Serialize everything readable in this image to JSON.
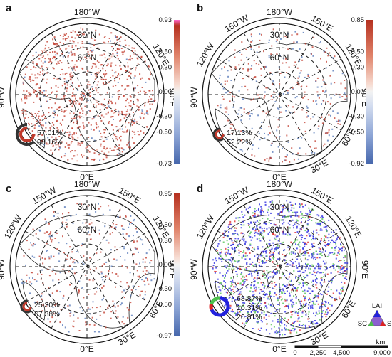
{
  "panels": [
    {
      "label": "a",
      "longitudes": [
        "180°W",
        "120°E",
        "90°E",
        "0°E",
        "90°W"
      ],
      "latitudes": [
        "30°N",
        "60°N"
      ],
      "colorbar": {
        "ticks": [
          "0.93",
          "0.50",
          "0.30",
          "0.00",
          "-0.30",
          "-0.50",
          "-0.73"
        ]
      },
      "percentages": [
        "57.01%",
        "98.16%"
      ]
    },
    {
      "label": "b",
      "longitudes": [
        "180°W",
        "150°E",
        "120°E",
        "90°E",
        "60°E",
        "30°E",
        "0°E",
        "90°W",
        "120°W",
        "150°W"
      ],
      "latitudes": [
        "30°N",
        "60°N"
      ],
      "colorbar": {
        "ticks": [
          "0.85",
          "0.50",
          "0.30",
          "0.00",
          "-0.30",
          "-0.50",
          "-0.92"
        ]
      },
      "percentages": [
        "17.13%",
        "52.22%"
      ]
    },
    {
      "label": "c",
      "longitudes": [
        "180°W",
        "150°E",
        "120°E",
        "90°E",
        "60°E",
        "30°E",
        "0°E",
        "90°W",
        "120°W",
        "150°W"
      ],
      "latitudes": [
        "30°N",
        "60°N"
      ],
      "colorbar": {
        "ticks": [
          "0.95",
          "0.50",
          "0.30",
          "0.00",
          "-0.30",
          "-0.50",
          "-0.97"
        ]
      },
      "percentages": [
        "25.30%",
        "67.38%"
      ]
    },
    {
      "label": "d",
      "longitudes": [
        "180°W",
        "150°E",
        "120°E",
        "90°E",
        "60°E",
        "30°E",
        "0°E",
        "90°W",
        "120°W",
        "150°W"
      ],
      "latitudes": [
        "30°N",
        "60°N"
      ],
      "percentages": [
        "68.87%",
        "10.31%",
        "20.81%"
      ],
      "ternary": {
        "top": "LAI",
        "left": "SC",
        "right": "SM"
      }
    }
  ],
  "scalebar": {
    "ticks": [
      "0",
      "2,250",
      "4,500",
      "9,000"
    ],
    "unit": "km"
  },
  "colors": {
    "positive": "#c0392b",
    "negative": "#4f73b6",
    "neutral": "#f2f2f2",
    "green": "#4cc04c",
    "blue": "#2222dd",
    "red": "#dd2222",
    "ring_dark": "#333333",
    "ring_gray": "#aaaaaa"
  }
}
